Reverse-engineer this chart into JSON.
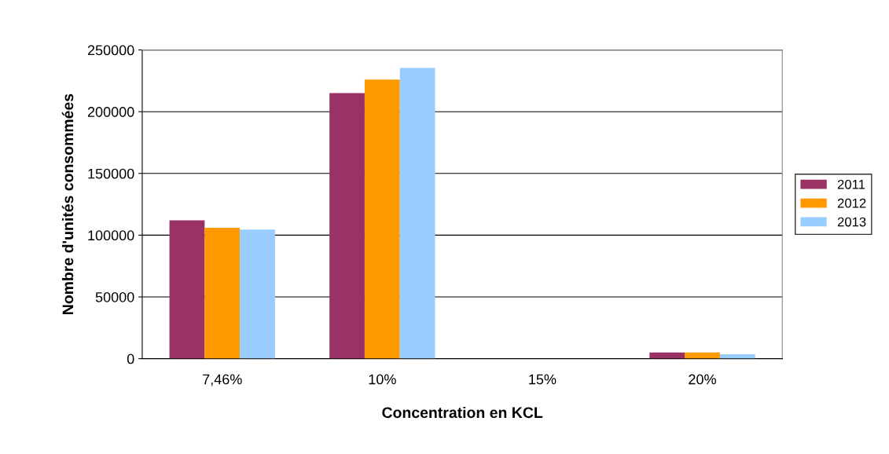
{
  "chart_data": {
    "type": "bar",
    "xlabel": "Concentration en KCL",
    "ylabel": "Nombre d'unités consommées",
    "categories": [
      "7,46%",
      "10%",
      "15%",
      "20%"
    ],
    "series": [
      {
        "name": "2011",
        "color": "#993366",
        "values": [
          112000,
          215000,
          0,
          5000
        ]
      },
      {
        "name": "2012",
        "color": "#ff9900",
        "values": [
          106000,
          226000,
          0,
          5000
        ]
      },
      {
        "name": "2013",
        "color": "#99ccff",
        "values": [
          104500,
          235500,
          0,
          3500
        ]
      }
    ],
    "ylim": [
      0,
      250000
    ],
    "yticks": [
      0,
      50000,
      100000,
      150000,
      200000,
      250000
    ],
    "grid": "y",
    "legend": "right"
  }
}
